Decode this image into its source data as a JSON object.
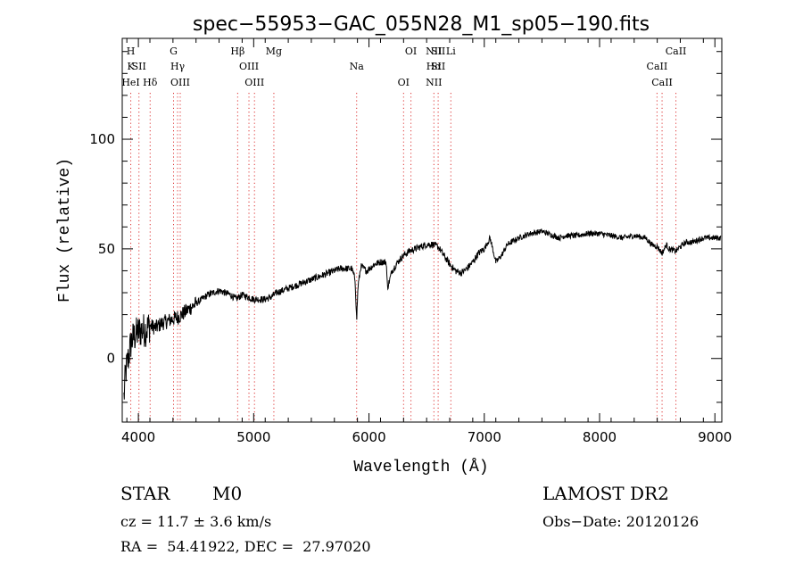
{
  "chart_data": {
    "type": "line",
    "title": "spec−55953−GAC_055N28_M1_sp05−190.fits",
    "xlabel": "Wavelength (Å)",
    "ylabel": "Flux (relative)",
    "xlim": [
      3860,
      9060
    ],
    "ylim": [
      -29,
      146
    ],
    "x_ticks": [
      4000,
      5000,
      6000,
      7000,
      8000,
      9000
    ],
    "x_tick_labels": [
      "4000",
      "5000",
      "6000",
      "7000",
      "8000",
      "9000"
    ],
    "y_ticks": [
      0,
      50,
      100
    ],
    "y_tick_labels": [
      "0",
      "50",
      "100"
    ],
    "grid": false,
    "legend": "none",
    "series": [
      {
        "color": "#000000",
        "x": [
          3875,
          3890,
          3905,
          3920,
          3935,
          3950,
          3965,
          3980,
          4000,
          4030,
          4060,
          4100,
          4150,
          4200,
          4250,
          4300,
          4350,
          4400,
          4450,
          4500,
          4550,
          4600,
          4650,
          4700,
          4750,
          4800,
          4850,
          4870,
          4900,
          4950,
          5000,
          5050,
          5100,
          5150,
          5200,
          5250,
          5300,
          5350,
          5400,
          5450,
          5500,
          5550,
          5600,
          5650,
          5700,
          5750,
          5800,
          5850,
          5880,
          5893,
          5905,
          5930,
          5980,
          6050,
          6100,
          6150,
          6160,
          6200,
          6250,
          6300,
          6350,
          6400,
          6450,
          6500,
          6550,
          6600,
          6650,
          6700,
          6750,
          6800,
          6850,
          6900,
          6950,
          7000,
          7050,
          7100,
          7150,
          7200,
          7300,
          7400,
          7500,
          7600,
          7650,
          7700,
          7800,
          7900,
          8000,
          8100,
          8200,
          8300,
          8400,
          8450,
          8500,
          8542,
          8580,
          8600,
          8662,
          8700,
          8750,
          8800,
          8850,
          8900,
          8950,
          9000,
          9050
        ],
        "y": [
          -18,
          -6,
          -2,
          2,
          7,
          9,
          10,
          11,
          12,
          13,
          13,
          15,
          14,
          16,
          17,
          18,
          19,
          21,
          23,
          25,
          27,
          29,
          30,
          31,
          30,
          29,
          27,
          28,
          29,
          28,
          27,
          27,
          27,
          28,
          30,
          31,
          32,
          33,
          34,
          35,
          36,
          37,
          38,
          39,
          40,
          41,
          41,
          41,
          36,
          17,
          33,
          42,
          40,
          43,
          44,
          44,
          32,
          40,
          44,
          47,
          49,
          50,
          51,
          52,
          52,
          51,
          47,
          43,
          40,
          39,
          41,
          44,
          48,
          50,
          55,
          44,
          47,
          52,
          55,
          57,
          58,
          56,
          55,
          56,
          56,
          57,
          57,
          56,
          55,
          56,
          55,
          52,
          51,
          48,
          52,
          50,
          49,
          51,
          53,
          53,
          54,
          55,
          55,
          55,
          55
        ]
      }
    ],
    "line_groups": [
      {
        "x": 3934,
        "labels": [
          "H",
          "K",
          "HeI"
        ]
      },
      {
        "x": 4005,
        "labels": [
          "SII"
        ]
      },
      {
        "x": 4102,
        "labels": [
          "Hδ"
        ]
      },
      {
        "x": 4305,
        "labels": [
          "G"
        ]
      },
      {
        "x": 4340,
        "labels": [
          "Hγ"
        ]
      },
      {
        "x": 4363,
        "labels": [
          "OIII"
        ]
      },
      {
        "x": 4861,
        "labels": [
          "Hβ"
        ]
      },
      {
        "x": 4959,
        "labels": [
          "OIII"
        ]
      },
      {
        "x": 5007,
        "labels": [
          "OIII"
        ]
      },
      {
        "x": 5175,
        "labels": [
          "Mg"
        ]
      },
      {
        "x": 5893,
        "labels": [
          "Na"
        ]
      },
      {
        "x": 6300,
        "labels": [
          "OI"
        ]
      },
      {
        "x": 6364,
        "labels": [
          "OI"
        ]
      },
      {
        "x": 6563,
        "labels": [
          "NII",
          "Hα",
          "NII"
        ]
      },
      {
        "x": 6600,
        "labels": [
          "SII",
          "SII"
        ]
      },
      {
        "x": 6710,
        "labels": [
          "Li"
        ]
      },
      {
        "x": 8498,
        "labels": [
          "CaII"
        ]
      },
      {
        "x": 8542,
        "labels": [
          "CaII"
        ]
      },
      {
        "x": 8662,
        "labels": [
          "CaII"
        ]
      }
    ],
    "colors": {
      "spectrum": "#000000",
      "line_markers": "#dd3333",
      "axes": "#000000"
    }
  },
  "footer": {
    "object_type": "STAR",
    "subclass": "M0",
    "survey": "LAMOST DR2",
    "cz": "cz = 11.7 ± 3.6 km/s",
    "obs_date": "Obs−Date: 20120126",
    "coords": "RA =  54.41922, DEC =  27.97020"
  }
}
